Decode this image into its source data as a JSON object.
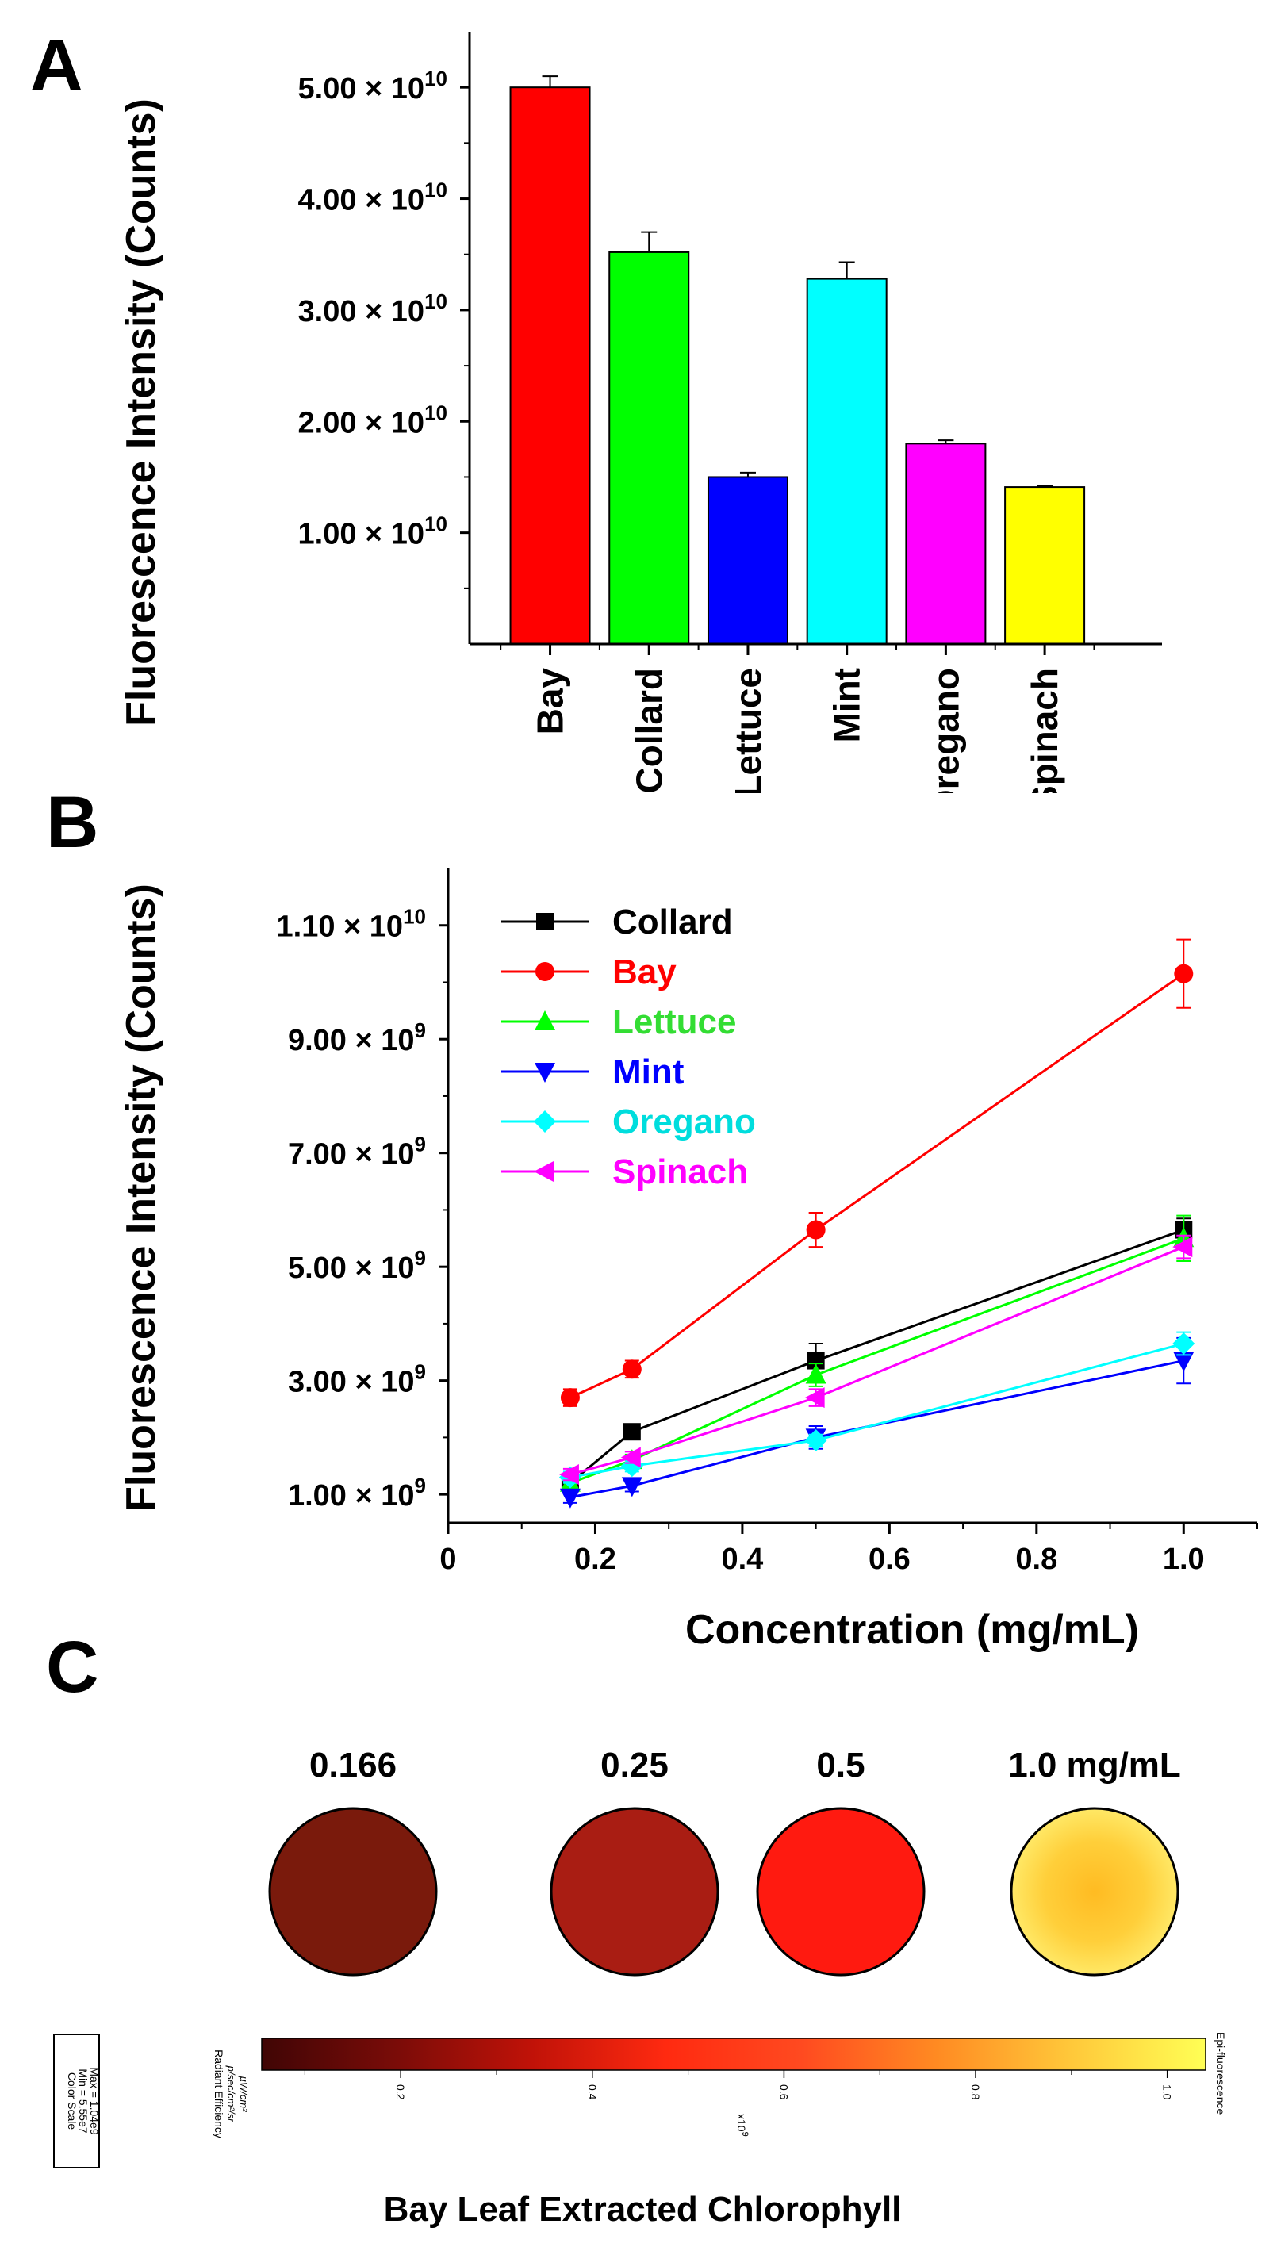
{
  "panels": {
    "a": "A",
    "b": "B",
    "c": "C"
  },
  "chart_data": [
    {
      "type": "bar",
      "panel": "A",
      "ylabel": "Fluorescence Intensity (Counts)",
      "xlabel": "",
      "categories": [
        "Bay",
        "Collard",
        "Lettuce",
        "Mint",
        "Oregano",
        "Spinach"
      ],
      "values": [
        50000000000.0,
        35200000000.0,
        15000000000.0,
        32800000000.0,
        18000000000.0,
        14100000000.0
      ],
      "errors": [
        1000000000.0,
        1800000000.0,
        400000000.0,
        1500000000.0,
        300000000.0,
        100000000.0
      ],
      "colors": [
        "#ff0000",
        "#00ff00",
        "#0000ff",
        "#00ffff",
        "#ff00ff",
        "#ffff00"
      ],
      "ylim": [
        0,
        55000000000.0
      ],
      "yticks": [
        {
          "value": 10000000000.0,
          "mantissa": "1.00 × 10",
          "exp": "10"
        },
        {
          "value": 20000000000.0,
          "mantissa": "2.00 × 10",
          "exp": "10"
        },
        {
          "value": 30000000000.0,
          "mantissa": "3.00 × 10",
          "exp": "10"
        },
        {
          "value": 40000000000.0,
          "mantissa": "4.00 × 10",
          "exp": "10"
        },
        {
          "value": 50000000000.0,
          "mantissa": "5.00 × 10",
          "exp": "10"
        }
      ]
    },
    {
      "type": "line",
      "panel": "B",
      "xlabel": "Concentration (mg/mL)",
      "ylabel": "Fluorescence Intensity (Counts)",
      "xlim": [
        0,
        1.1
      ],
      "ylim": [
        500000000.0,
        12000000000.0
      ],
      "xticks": [
        {
          "value": 0,
          "label": "0"
        },
        {
          "value": 0.2,
          "label": "0.2"
        },
        {
          "value": 0.4,
          "label": "0.4"
        },
        {
          "value": 0.6,
          "label": "0.6"
        },
        {
          "value": 0.8,
          "label": "0.8"
        },
        {
          "value": 1.0,
          "label": "1.0"
        }
      ],
      "yticks": [
        {
          "value": 1000000000.0,
          "mantissa": "1.00 × 10",
          "exp": "9"
        },
        {
          "value": 3000000000.0,
          "mantissa": "3.00 × 10",
          "exp": "9"
        },
        {
          "value": 5000000000.0,
          "mantissa": "5.00 × 10",
          "exp": "9"
        },
        {
          "value": 7000000000.0,
          "mantissa": "7.00 × 10",
          "exp": "9"
        },
        {
          "value": 9000000000.0,
          "mantissa": "9.00 × 10",
          "exp": "9"
        },
        {
          "value": 11000000000.0,
          "mantissa": "1.10 × 10",
          "exp": "10"
        }
      ],
      "legend_position": "top-left",
      "x": [
        0.166,
        0.25,
        0.5,
        1.0
      ],
      "series": [
        {
          "name": "Collard",
          "color": "#000000",
          "label_color": "#000000",
          "marker": "square",
          "values": [
            1200000000.0,
            2100000000.0,
            3350000000.0,
            5650000000.0
          ],
          "errors": [
            100000000.0,
            100000000.0,
            300000000.0,
            200000000.0
          ]
        },
        {
          "name": "Bay",
          "color": "#ff0000",
          "label_color": "#ff0000",
          "marker": "circle",
          "values": [
            2700000000.0,
            3200000000.0,
            5650000000.0,
            10150000000.0
          ],
          "errors": [
            150000000.0,
            150000000.0,
            300000000.0,
            600000000.0
          ]
        },
        {
          "name": "Lettuce",
          "color": "#00ff00",
          "label_color": "#33dd33",
          "marker": "triangle-up",
          "values": [
            1200000000.0,
            1600000000.0,
            3100000000.0,
            5500000000.0
          ],
          "errors": [
            100000000.0,
            100000000.0,
            200000000.0,
            400000000.0
          ]
        },
        {
          "name": "Mint",
          "color": "#0000ff",
          "label_color": "#0000ff",
          "marker": "triangle-down",
          "values": [
            950000000.0,
            1150000000.0,
            2000000000.0,
            3350000000.0
          ],
          "errors": [
            100000000.0,
            100000000.0,
            200000000.0,
            400000000.0
          ]
        },
        {
          "name": "Oregano",
          "color": "#00ffff",
          "label_color": "#00dddd",
          "marker": "diamond",
          "values": [
            1300000000.0,
            1500000000.0,
            1950000000.0,
            3650000000.0
          ],
          "errors": [
            100000000.0,
            100000000.0,
            100000000.0,
            200000000.0
          ]
        },
        {
          "name": "Spinach",
          "color": "#ff00ff",
          "label_color": "#ff00ff",
          "marker": "triangle-left",
          "values": [
            1350000000.0,
            1650000000.0,
            2700000000.0,
            5350000000.0
          ],
          "errors": [
            100000000.0,
            100000000.0,
            150000000.0,
            200000000.0
          ]
        }
      ]
    }
  ],
  "panel_c": {
    "labels": [
      "0.166",
      "0.25",
      "0.5",
      "1.0 mg/mL"
    ],
    "well_colors": [
      "#7a1a0c",
      "#a91d13",
      "#ff1a10",
      "#ffcc33"
    ],
    "colorbar": {
      "gradient_colors": [
        "#400505",
        "#7a0c08",
        "#c01208",
        "#ff2a10",
        "#ff4a20",
        "#ff8a22",
        "#ffc83a",
        "#ffff55"
      ],
      "range": [
        0.055,
        1.04
      ],
      "ticks": [
        "0.2",
        "0.4",
        "0.6",
        "0.8",
        "1.0"
      ],
      "multiplier": "x10",
      "multiplier_exp": "9",
      "left_label": "Radiant Efficiency",
      "left_units_num": "p/sec/cm²/sr",
      "left_units_den": "µW/cm²",
      "right_label": "Epi-fluorescence",
      "color_scale_title": "Color Scale",
      "color_scale_min": "Min = 5.55e7",
      "color_scale_max": "Max = 1.04e9"
    },
    "caption": "Bay Leaf Extracted Chlorophyll"
  }
}
